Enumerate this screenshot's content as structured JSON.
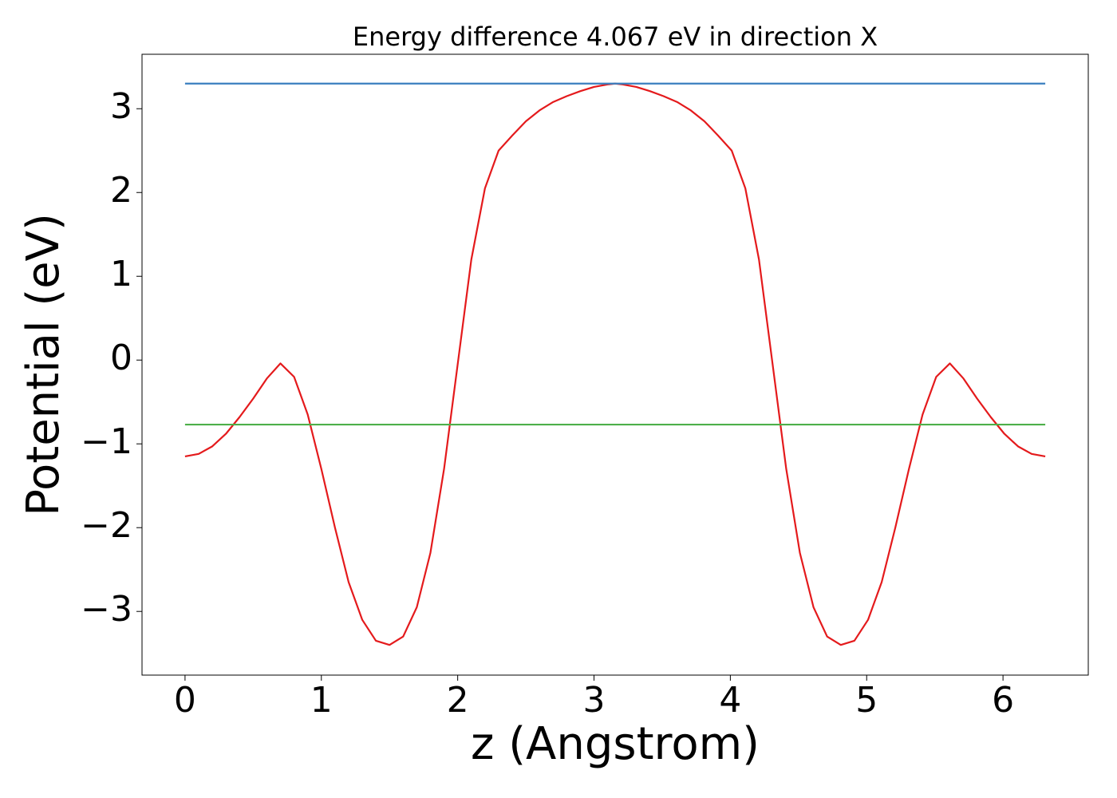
{
  "chart_data": {
    "type": "line",
    "title": "Energy difference 4.067 eV in direction X",
    "xlabel": "z (Angstrom)",
    "ylabel": "Potential (eV)",
    "xlim": [
      -0.3155,
      6.6255
    ],
    "ylim": [
      -3.76,
      3.65
    ],
    "xticks": [
      0,
      1,
      2,
      3,
      4,
      5,
      6
    ],
    "yticks": [
      {
        "value": -3,
        "label": "−3"
      },
      {
        "value": -2,
        "label": "−2"
      },
      {
        "value": -1,
        "label": "−1"
      },
      0,
      1,
      2,
      3
    ],
    "series": [
      {
        "color": "#e41a1c",
        "x": [
          0,
          0.1,
          0.2,
          0.3,
          0.4,
          0.5,
          0.6,
          0.7,
          0.8,
          0.9,
          1.0,
          1.1,
          1.2,
          1.3,
          1.4,
          1.5,
          1.6,
          1.7,
          1.8,
          1.9,
          2.0,
          2.1,
          2.2,
          2.3,
          2.4,
          2.5,
          2.6,
          2.7,
          2.8,
          2.9,
          3.0,
          3.1,
          3.155,
          3.21,
          3.31,
          3.41,
          3.51,
          3.61,
          3.71,
          3.81,
          3.91,
          4.01,
          4.11,
          4.21,
          4.31,
          4.41,
          4.51,
          4.61,
          4.71,
          4.81,
          4.91,
          5.01,
          5.11,
          5.21,
          5.31,
          5.41,
          5.51,
          5.61,
          5.71,
          5.81,
          5.91,
          6.01,
          6.11,
          6.21,
          6.31
        ],
        "values": [
          -1.15,
          -1.12,
          -1.03,
          -0.88,
          -0.68,
          -0.46,
          -0.22,
          -0.04,
          -0.2,
          -0.65,
          -1.3,
          -2.0,
          -2.65,
          -3.1,
          -3.35,
          -3.4,
          -3.3,
          -2.95,
          -2.3,
          -1.3,
          -0.05,
          1.2,
          2.05,
          2.5,
          2.68,
          2.85,
          2.98,
          3.08,
          3.15,
          3.21,
          3.26,
          3.29,
          3.3,
          3.29,
          3.26,
          3.21,
          3.15,
          3.08,
          2.98,
          2.85,
          2.68,
          2.5,
          2.05,
          1.2,
          -0.05,
          -1.3,
          -2.3,
          -2.95,
          -3.3,
          -3.4,
          -3.35,
          -3.1,
          -2.65,
          -2.0,
          -1.3,
          -0.65,
          -0.2,
          -0.04,
          -0.22,
          -0.46,
          -0.68,
          -0.88,
          -1.03,
          -1.12,
          -1.15
        ]
      },
      {
        "color": "#3a7fbf",
        "x": [
          0,
          6.31
        ],
        "values": [
          3.3,
          3.3
        ]
      },
      {
        "color": "#4daf4a",
        "x": [
          0,
          6.31
        ],
        "values": [
          -0.77,
          -0.77
        ]
      }
    ]
  }
}
